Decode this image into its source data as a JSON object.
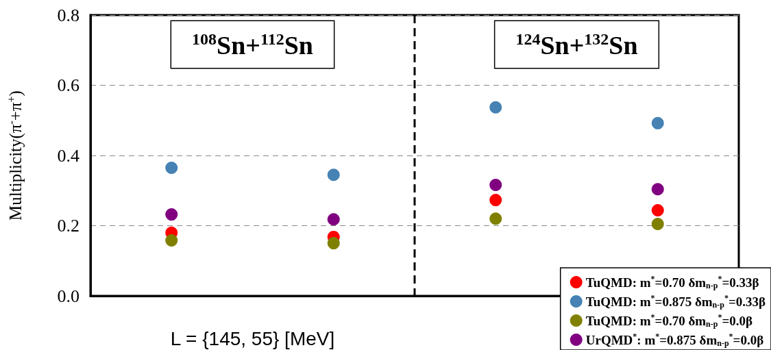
{
  "chart_data": {
    "type": "scatter",
    "categories": [
      null,
      null,
      null,
      null
    ],
    "series": [
      {
        "name": "TuQMD: m$^{*}$=0.70 δm$_{n-p}$$^{*}$=0.33β",
        "color": "#ff0000",
        "values": [
          0.18,
          0.168,
          0.273,
          0.244
        ]
      },
      {
        "name": "TuQMD: m$^{*}$=0.875 δm$_{n-p}$$^{*}$=0.33β",
        "color": "#4682b4",
        "values": [
          0.365,
          0.345,
          0.537,
          0.492
        ]
      },
      {
        "name": "TuQMD: m$^{*}$=0.70 δm$_{n-p}$$^{*}$=0.0β",
        "color": "#808000",
        "values": [
          0.158,
          0.15,
          0.22,
          0.205
        ]
      },
      {
        "name": "UrQMD$^{*}$: m$^{*}$=0.875 δm$_{n-p}$$^{*}$=0.0β",
        "color": "#800080",
        "values": [
          0.232,
          0.218,
          0.316,
          0.304
        ]
      }
    ],
    "xlabel": "L = {145, 55} [MeV]",
    "ylabel": "Multiplicity(π$^{-}$+π$^{+}$)",
    "annotations": [
      "$^{108}$Sn+$^{112}$Sn",
      "$^{124}$Sn+$^{132}$Sn"
    ],
    "ylim": [
      0,
      0.8
    ],
    "yticks": [
      {
        "value": 0,
        "label": "0.0"
      },
      {
        "value": 0.2,
        "label": "0.2"
      },
      {
        "value": 0.4,
        "label": "0.4"
      },
      {
        "value": 0.6,
        "label": "0.6"
      },
      {
        "value": 0.8,
        "label": "0.8"
      }
    ],
    "grid": "y",
    "legend": "bottom right",
    "marker": "circle"
  }
}
